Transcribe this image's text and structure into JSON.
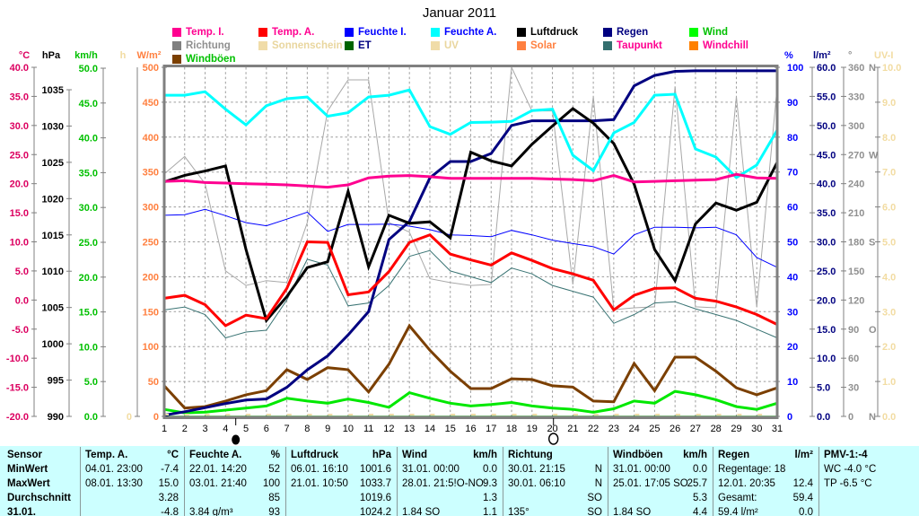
{
  "title": "Januar 2011",
  "legend": {
    "rows": [
      [
        {
          "label": "Temp. I.",
          "swatch": "#FF0090",
          "text": "#FF0090"
        },
        {
          "label": "Temp. A.",
          "swatch": "#FF0000",
          "text": "#FF0090"
        },
        {
          "label": "Feuchte I.",
          "swatch": "#0000FF",
          "text": "#0000FF"
        },
        {
          "label": "Feuchte A.",
          "swatch": "#00FFFF",
          "text": "#0000FF"
        },
        {
          "label": "Luftdruck",
          "swatch": "#000000",
          "text": "#000000"
        },
        {
          "label": "Regen",
          "swatch": "#000080",
          "text": "#000080"
        },
        {
          "label": "Wind",
          "swatch": "#00FF00",
          "text": "#00C000"
        }
      ],
      [
        {
          "label": "Richtung",
          "swatch": "#808080",
          "text": "#909090"
        },
        {
          "label": "Sonnenschein",
          "swatch": "#F0DCA8",
          "text": "#E9D69E"
        },
        {
          "label": "ET",
          "swatch": "#006400",
          "text": "#000080"
        },
        {
          "label": "UV",
          "swatch": "#F0DCA8",
          "text": "#E9D69E"
        },
        {
          "label": "Solar",
          "swatch": "#FF8040",
          "text": "#FF8040"
        },
        {
          "label": "Taupunkt",
          "swatch": "#336F6F",
          "text": "#FF0090"
        },
        {
          "label": "Windchill",
          "swatch": "#FF8000",
          "text": "#FF0090"
        }
      ],
      [
        {
          "label": "Windböen",
          "swatch": "#7B3F00",
          "text": "#00C000"
        }
      ]
    ]
  },
  "axes": {
    "left": [
      {
        "unit": "°C",
        "color": "#DC0060",
        "ticks": [
          "40.0",
          "35.0",
          "30.0",
          "25.0",
          "20.0",
          "15.0",
          "10.0",
          "5.0",
          "0.0",
          "-5.0",
          "-10.0",
          "-15.0",
          "-20.0"
        ]
      },
      {
        "unit": "hPa",
        "color": "#000000",
        "ticks": [
          "1035",
          "1030",
          "1025",
          "1020",
          "1015",
          "1010",
          "1005",
          "1000",
          "995",
          "990"
        ]
      },
      {
        "unit": "km/h",
        "color": "#00C000",
        "ticks": [
          "50.0",
          "45.0",
          "40.0",
          "35.0",
          "30.0",
          "25.0",
          "20.0",
          "15.0",
          "10.0",
          "5.0",
          "0.0"
        ]
      },
      {
        "unit": "h",
        "color": "#F2DCA2",
        "ticks": [
          "0"
        ]
      },
      {
        "unit": "W/m²",
        "color": "#FF8040",
        "ticks": [
          "500",
          "450",
          "400",
          "350",
          "300",
          "250",
          "200",
          "150",
          "100",
          "50",
          "0"
        ]
      }
    ],
    "right": [
      {
        "unit": "%",
        "color": "#0000FF",
        "ticks": [
          "100",
          "90",
          "80",
          "70",
          "60",
          "50",
          "40",
          "30",
          "20",
          "10",
          "0"
        ]
      },
      {
        "unit": "l/m²",
        "color": "#000080",
        "ticks": [
          "60.0",
          "55.0",
          "50.0",
          "45.0",
          "40.0",
          "35.0",
          "30.0",
          "25.0",
          "20.0",
          "15.0",
          "10.0",
          "5.0",
          "0.0"
        ]
      },
      {
        "unit": "°",
        "color": "#909090",
        "ticks": [
          "360 N",
          "330",
          "300",
          "270 W",
          "240",
          "210",
          "180 S",
          "150",
          "120",
          "90 O",
          "60",
          "30",
          "0 N"
        ]
      },
      {
        "unit": "UV-I",
        "color": "#F2DCA2",
        "ticks": [
          "10.0",
          "9.0",
          "8.0",
          "7.0",
          "6.0",
          "5.0",
          "4.0",
          "3.0",
          "2.0",
          "1.0",
          "0.0"
        ]
      }
    ]
  },
  "chart_data": {
    "type": "line",
    "title": "Januar 2011",
    "x_label_days": [
      "1",
      "2",
      "3",
      "4",
      "5",
      "6",
      "7",
      "8",
      "9",
      "10",
      "11",
      "12",
      "13",
      "14",
      "15",
      "16",
      "17",
      "18",
      "19",
      "20",
      "21",
      "22",
      "23",
      "24",
      "25",
      "26",
      "27",
      "28",
      "29",
      "30",
      "31"
    ],
    "moon": {
      "new_moon_day": 4.5,
      "full_moon_day": 20.05
    },
    "axis_ranges": {
      "tempC": [
        -20,
        40
      ],
      "pct": [
        0,
        100
      ],
      "hpa": [
        990,
        1035
      ],
      "lm2": [
        0,
        60
      ],
      "kmh": [
        0,
        50
      ],
      "deg": [
        0,
        360
      ]
    },
    "series": [
      {
        "name": "Richtung",
        "color": "#A8A8A8",
        "width": 1,
        "scale": "deg",
        "values": [
          250,
          268,
          240,
          150,
          135,
          140,
          138,
          200,
          315,
          347,
          347,
          200,
          190,
          142,
          138,
          135,
          136,
          360,
          315,
          315,
          136,
          330,
          110,
          112,
          113,
          340,
          113,
          112,
          330,
          113,
          340
        ]
      },
      {
        "name": "Solar",
        "color": "#FF8040",
        "width": 1,
        "scale": "kmh",
        "constant": 0
      },
      {
        "name": "UV",
        "color": "#F0DCA8",
        "width": 1,
        "scale": "kmh",
        "constant": 0
      },
      {
        "name": "ET",
        "color": "#006400",
        "width": 1,
        "scale": "kmh",
        "constant": 0
      },
      {
        "name": "Taupunkt",
        "color": "#3A7474",
        "width": 1,
        "scale": "tempC",
        "values": [
          -1.7,
          -1.2,
          -2.5,
          -6.5,
          -5.5,
          -5.2,
          0.0,
          7.0,
          6.0,
          -1.0,
          -0.5,
          2.5,
          7.5,
          8.5,
          5.0,
          4.0,
          3.0,
          5.5,
          4.5,
          2.5,
          1.5,
          0.5,
          -4.0,
          -2.5,
          -0.5,
          -0.3,
          -1.5,
          -2.5,
          -3.5,
          -5.0,
          -6.5
        ]
      },
      {
        "name": "Feuchte I.",
        "color": "#0000FF",
        "width": 1,
        "scale": "pct",
        "values": [
          57.6,
          57.8,
          59.3,
          57.5,
          55.5,
          54.6,
          56.5,
          58.5,
          53.0,
          55.0,
          55.0,
          55.1,
          54.5,
          53.5,
          52.0,
          51.8,
          51.5,
          53.3,
          52.0,
          50.5,
          49.5,
          48.6,
          46.5,
          52.0,
          54.2,
          54.2,
          54.0,
          54.2,
          52.0,
          45.5,
          42.7
        ]
      },
      {
        "name": "Windböen",
        "color": "#7B3F00",
        "width": 3,
        "scale": "kmh",
        "values": [
          4.4,
          1.2,
          1.4,
          2.2,
          3.1,
          3.7,
          6.7,
          5.3,
          7.0,
          6.7,
          3.5,
          7.5,
          13.0,
          9.5,
          6.5,
          4.0,
          4.0,
          5.4,
          5.3,
          4.4,
          4.2,
          2.2,
          2.1,
          7.6,
          3.7,
          8.5,
          8.5,
          6.5,
          4.1,
          3.1,
          4.1
        ]
      },
      {
        "name": "Wind",
        "color": "#00E800",
        "width": 3,
        "scale": "kmh",
        "values": [
          1.0,
          0.5,
          0.6,
          0.9,
          1.2,
          1.5,
          2.6,
          2.2,
          1.9,
          2.5,
          2.0,
          1.3,
          3.4,
          2.6,
          1.9,
          1.5,
          1.7,
          2.0,
          1.5,
          1.2,
          1.0,
          0.6,
          1.1,
          2.2,
          1.9,
          3.6,
          3.1,
          2.4,
          1.4,
          1.0,
          1.9
        ]
      },
      {
        "name": "Regen",
        "color": "#000080",
        "width": 3,
        "scale": "lm2",
        "values": [
          0.2,
          0.8,
          1.5,
          2.2,
          2.8,
          3.0,
          5.0,
          8.0,
          10.4,
          14.0,
          18.0,
          30.4,
          33.5,
          41.0,
          43.8,
          43.8,
          45.2,
          50.0,
          50.8,
          50.8,
          50.8,
          50.8,
          51.0,
          56.8,
          58.6,
          59.3,
          59.4,
          59.4,
          59.4,
          59.4,
          59.4
        ]
      },
      {
        "name": "Luftdruck",
        "color": "#000000",
        "width": 3,
        "scale": "hpa",
        "values": [
          1022.3,
          1023.2,
          1023.8,
          1024.5,
          1013.0,
          1003.2,
          1006.5,
          1010.5,
          1011.3,
          1021.0,
          1010.6,
          1017.7,
          1016.6,
          1016.8,
          1014.6,
          1026.4,
          1025.2,
          1024.5,
          1027.5,
          1030.0,
          1032.4,
          1030.4,
          1027.6,
          1022.0,
          1013.0,
          1008.7,
          1016.5,
          1019.4,
          1018.4,
          1019.5,
          1025.0
        ]
      },
      {
        "name": "Feuchte A.",
        "color": "#00FFFF",
        "width": 3,
        "scale": "pct",
        "values": [
          92,
          92,
          93,
          88,
          83.5,
          89,
          91,
          91.5,
          86,
          87,
          91.5,
          92,
          93.5,
          83,
          80.8,
          84.2,
          84.3,
          84.5,
          87.6,
          88,
          74.8,
          70.4,
          81.2,
          84.2,
          92,
          92.3,
          76.6,
          74.3,
          68.4,
          72,
          82
        ]
      },
      {
        "name": "Sonnenschein",
        "color": "#F0DCA8",
        "width": 2,
        "scale": "kmh",
        "constant": 0,
        "y_offset": -2,
        "dash": "5,17.8"
      },
      {
        "name": "Temp. A.",
        "color": "#FF0000",
        "width": 3,
        "scale": "tempC",
        "values": [
          0.3,
          0.8,
          -0.8,
          -4.4,
          -2.6,
          -3.2,
          2.0,
          10.0,
          9.9,
          0.9,
          1.4,
          4.9,
          9.9,
          11.2,
          7.9,
          6.9,
          6.0,
          8.1,
          6.8,
          5.4,
          4.5,
          3.4,
          -1.7,
          0.8,
          2.0,
          2.1,
          0.3,
          -0.2,
          -1.2,
          -2.5,
          -4.2
        ]
      },
      {
        "name": "Temp. I.",
        "color": "#FF0090",
        "width": 3,
        "scale": "tempC",
        "values": [
          20.4,
          20.5,
          20.2,
          20.1,
          20.0,
          19.9,
          19.8,
          19.6,
          19.4,
          19.8,
          21.0,
          21.3,
          21.4,
          21.2,
          20.9,
          20.9,
          20.9,
          20.9,
          20.9,
          20.8,
          20.7,
          20.5,
          21.4,
          20.3,
          20.4,
          20.5,
          20.6,
          20.7,
          21.6,
          21.0,
          20.9
        ]
      }
    ]
  },
  "table": {
    "bg": "#CCFFFF",
    "row_labels": [
      "Sensor",
      "MinWert",
      "MaxWert",
      "Durchschnitt",
      "31.01."
    ],
    "columns": [
      {
        "header": "Temp. A.",
        "unit": "°C",
        "cells": [
          [
            "04.01.  23:00",
            "-7.4"
          ],
          [
            "08.01.  13:30",
            "15.0"
          ],
          [
            "",
            "3.28"
          ],
          [
            "",
            "-4.8"
          ]
        ]
      },
      {
        "header": "Feuchte A.",
        "unit": "%",
        "cells": [
          [
            "22.01.  14:20",
            "52"
          ],
          [
            "03.01.  21:40",
            "100"
          ],
          [
            "",
            "85"
          ],
          [
            "3.84  g/m³",
            "93"
          ]
        ]
      },
      {
        "header": "Luftdruck",
        "unit": "hPa",
        "cells": [
          [
            "06.01.  16:10",
            "1001.6"
          ],
          [
            "21.01.  10:50",
            "1033.7"
          ],
          [
            "",
            "1019.6"
          ],
          [
            "",
            "1024.2"
          ]
        ]
      },
      {
        "header": "Wind",
        "unit": "km/h",
        "cells": [
          [
            "31.01.  00:00",
            "0.0"
          ],
          [
            "28.01.  21:5!O-NO",
            "9.3"
          ],
          [
            "",
            "1.3"
          ],
          [
            "1.84 SO",
            "1.1"
          ]
        ]
      },
      {
        "header": "Richtung",
        "unit": "",
        "cells": [
          [
            "30.01.  21:15",
            "N"
          ],
          [
            "30.01.  06:10",
            "N"
          ],
          [
            "",
            "SO"
          ],
          [
            "135°",
            "SO"
          ]
        ]
      },
      {
        "header": "Windböen",
        "unit": "km/h",
        "cells": [
          [
            "31.01.  00:00",
            "0.0"
          ],
          [
            "25.01.  17:05 SO",
            "25.7"
          ],
          [
            "",
            "5.3"
          ],
          [
            "1.84 SO",
            "4.4"
          ]
        ]
      },
      {
        "header": "Regen",
        "unit": "l/m²",
        "cells": [
          [
            "Regentage: 18",
            ""
          ],
          [
            "12.01.  20:35",
            "12.4"
          ],
          [
            "Gesamt:",
            "59.4"
          ],
          [
            "59.4 l/m²",
            "0.0"
          ]
        ]
      },
      {
        "header": "PMV-1:-4",
        "unit": "",
        "cells": [
          [
            "WC -4.0 °C",
            ""
          ],
          [
            "TP -6.5 °C",
            ""
          ],
          [
            "",
            ""
          ],
          [
            "",
            ""
          ]
        ]
      }
    ]
  }
}
